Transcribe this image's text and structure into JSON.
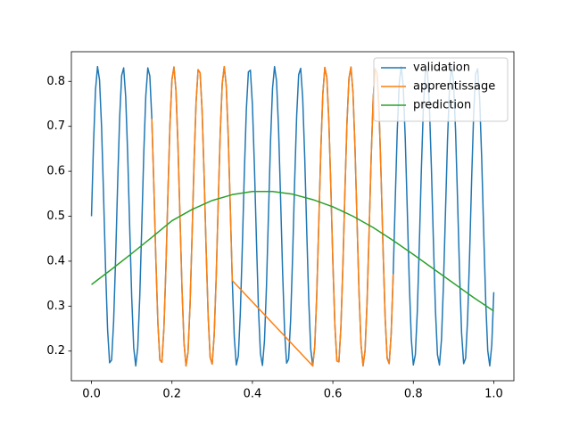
{
  "chart_data": {
    "type": "line",
    "xlim": [
      -0.05,
      1.05
    ],
    "ylim": [
      0.134,
      0.866
    ],
    "xticks": [
      {
        "value": 0,
        "label": "0.0"
      },
      0.2,
      0.4,
      0.6,
      0.8,
      {
        "value": 1,
        "label": "1.0"
      }
    ],
    "yticks": [
      0.2,
      0.3,
      0.4,
      0.5,
      0.6,
      0.7,
      0.8
    ],
    "grid": false,
    "legend": "upper right",
    "series": [
      {
        "name": "validation",
        "color": "#1f77b4",
        "x": [
          0,
          0.005,
          0.01,
          0.015,
          0.02,
          0.025,
          0.03,
          0.035,
          0.04,
          0.045,
          0.05,
          0.055,
          0.06,
          0.065,
          0.07,
          0.075,
          0.08,
          0.085,
          0.09,
          0.095,
          0.1,
          0.105,
          0.11,
          0.115,
          0.12,
          0.125,
          0.13,
          0.135,
          0.14,
          0.145,
          0.15,
          0.155,
          0.16,
          0.165,
          0.17,
          0.175,
          0.18,
          0.185,
          0.19,
          0.195,
          0.2,
          0.205,
          0.21,
          0.215,
          0.22,
          0.225,
          0.23,
          0.235,
          0.24,
          0.245,
          0.25,
          0.255,
          0.26,
          0.265,
          0.27,
          0.275,
          0.28,
          0.285,
          0.29,
          0.295,
          0.3,
          0.305,
          0.31,
          0.315,
          0.32,
          0.325,
          0.33,
          0.335,
          0.34,
          0.345,
          0.35,
          0.355,
          0.36,
          0.365,
          0.37,
          0.375,
          0.38,
          0.385,
          0.39,
          0.395,
          0.4,
          0.405,
          0.41,
          0.415,
          0.42,
          0.425,
          0.43,
          0.435,
          0.44,
          0.445,
          0.45,
          0.455,
          0.46,
          0.465,
          0.47,
          0.475,
          0.48,
          0.485,
          0.49,
          0.495,
          0.5,
          0.505,
          0.51,
          0.515,
          0.52,
          0.525,
          0.53,
          0.535,
          0.54,
          0.545,
          0.55,
          0.555,
          0.56,
          0.565,
          0.57,
          0.575,
          0.58,
          0.585,
          0.59,
          0.595,
          0.6,
          0.605,
          0.61,
          0.615,
          0.62,
          0.625,
          0.63,
          0.635,
          0.64,
          0.645,
          0.65,
          0.655,
          0.66,
          0.665,
          0.67,
          0.675,
          0.68,
          0.685,
          0.69,
          0.695,
          0.7,
          0.705,
          0.71,
          0.715,
          0.72,
          0.725,
          0.73,
          0.735,
          0.74,
          0.745,
          0.75,
          0.755,
          0.76,
          0.765,
          0.77,
          0.775,
          0.78,
          0.785,
          0.79,
          0.795,
          0.8,
          0.805,
          0.81,
          0.815,
          0.82,
          0.825,
          0.83,
          0.835,
          0.84,
          0.845,
          0.85,
          0.855,
          0.86,
          0.865,
          0.87,
          0.875,
          0.88,
          0.885,
          0.89,
          0.895,
          0.9,
          0.905,
          0.91,
          0.915,
          0.92,
          0.925,
          0.93,
          0.935,
          0.94,
          0.945,
          0.95,
          0.955,
          0.96,
          0.965,
          0.97,
          0.975,
          0.98,
          0.985,
          0.99,
          0.995,
          1
        ],
        "values": [
          0.5,
          0.66,
          0.781,
          0.833,
          0.803,
          0.7,
          0.547,
          0.383,
          0.248,
          0.174,
          0.18,
          0.265,
          0.407,
          0.572,
          0.719,
          0.813,
          0.83,
          0.766,
          0.637,
          0.475,
          0.319,
          0.207,
          0.167,
          0.208,
          0.321,
          0.478,
          0.64,
          0.768,
          0.83,
          0.812,
          0.717,
          0.569,
          0.404,
          0.263,
          0.18,
          0.175,
          0.25,
          0.386,
          0.55,
          0.702,
          0.804,
          0.832,
          0.779,
          0.657,
          0.497,
          0.338,
          0.218,
          0.167,
          0.198,
          0.303,
          0.456,
          0.62,
          0.754,
          0.826,
          0.819,
          0.734,
          0.59,
          0.425,
          0.279,
          0.186,
          0.171,
          0.236,
          0.365,
          0.528,
          0.684,
          0.795,
          0.833,
          0.79,
          0.676,
          0.519,
          0.357,
          0.23,
          0.169,
          0.189,
          0.285,
          0.434,
          0.599,
          0.739,
          0.821,
          0.825,
          0.748,
          0.611,
          0.447,
          0.295,
          0.194,
          0.168,
          0.223,
          0.345,
          0.506,
          0.665,
          0.784,
          0.833,
          0.801,
          0.695,
          0.541,
          0.378,
          0.244,
          0.173,
          0.182,
          0.269,
          0.413,
          0.577,
          0.723,
          0.815,
          0.829,
          0.763,
          0.632,
          0.469,
          0.314,
          0.204,
          0.167,
          0.211,
          0.326,
          0.484,
          0.645,
          0.772,
          0.831,
          0.809,
          0.712,
          0.563,
          0.398,
          0.258,
          0.178,
          0.176,
          0.254,
          0.391,
          0.556,
          0.707,
          0.807,
          0.832,
          0.776,
          0.652,
          0.491,
          0.332,
          0.215,
          0.167,
          0.201,
          0.308,
          0.462,
          0.625,
          0.758,
          0.828,
          0.817,
          0.73,
          0.585,
          0.42,
          0.274,
          0.184,
          0.172,
          0.239,
          0.371,
          0.534,
          0.689,
          0.797,
          0.833,
          0.788,
          0.671,
          0.513,
          0.352,
          0.227,
          0.169,
          0.192,
          0.29,
          0.44,
          0.604,
          0.743,
          0.823,
          0.823,
          0.744,
          0.606,
          0.441,
          0.291,
          0.192,
          0.169,
          0.226,
          0.351,
          0.512,
          0.67,
          0.787,
          0.833,
          0.798,
          0.69,
          0.535,
          0.372,
          0.24,
          0.172,
          0.184,
          0.273,
          0.418,
          0.583,
          0.728,
          0.817,
          0.828,
          0.759,
          0.627,
          0.463,
          0.309,
          0.201,
          0.167,
          0.214,
          0.331
        ]
      },
      {
        "name": "apprentissage",
        "color": "#ff7f0e",
        "x": [
          0.15,
          0.155,
          0.16,
          0.165,
          0.17,
          0.175,
          0.18,
          0.185,
          0.19,
          0.195,
          0.2,
          0.205,
          0.21,
          0.215,
          0.22,
          0.225,
          0.23,
          0.235,
          0.24,
          0.245,
          0.25,
          0.255,
          0.26,
          0.265,
          0.27,
          0.275,
          0.28,
          0.285,
          0.29,
          0.295,
          0.3,
          0.305,
          0.31,
          0.315,
          0.32,
          0.325,
          0.33,
          0.335,
          0.34,
          0.345,
          0.35,
          0.55,
          0.555,
          0.56,
          0.565,
          0.57,
          0.575,
          0.58,
          0.585,
          0.59,
          0.595,
          0.6,
          0.605,
          0.61,
          0.615,
          0.62,
          0.625,
          0.63,
          0.635,
          0.64,
          0.645,
          0.65,
          0.655,
          0.66,
          0.665,
          0.67,
          0.675,
          0.68,
          0.685,
          0.69,
          0.695,
          0.7,
          0.705,
          0.71,
          0.715,
          0.72,
          0.725,
          0.73,
          0.735,
          0.74,
          0.745,
          0.75
        ],
        "values": [
          0.717,
          0.569,
          0.404,
          0.263,
          0.18,
          0.175,
          0.25,
          0.386,
          0.55,
          0.702,
          0.804,
          0.832,
          0.779,
          0.657,
          0.497,
          0.338,
          0.218,
          0.167,
          0.198,
          0.303,
          0.456,
          0.62,
          0.754,
          0.826,
          0.819,
          0.734,
          0.59,
          0.425,
          0.279,
          0.186,
          0.171,
          0.236,
          0.365,
          0.528,
          0.684,
          0.795,
          0.833,
          0.79,
          0.676,
          0.519,
          0.357,
          0.167,
          0.211,
          0.326,
          0.484,
          0.645,
          0.772,
          0.831,
          0.809,
          0.712,
          0.563,
          0.398,
          0.258,
          0.178,
          0.176,
          0.254,
          0.391,
          0.556,
          0.707,
          0.807,
          0.832,
          0.776,
          0.652,
          0.491,
          0.332,
          0.215,
          0.167,
          0.201,
          0.308,
          0.462,
          0.625,
          0.758,
          0.828,
          0.817,
          0.73,
          0.585,
          0.42,
          0.274,
          0.184,
          0.172,
          0.239,
          0.371
        ]
      },
      {
        "name": "prediction",
        "color": "#2ca02c",
        "x": [
          0,
          0.05,
          0.1,
          0.15,
          0.2,
          0.25,
          0.3,
          0.35,
          0.4,
          0.45,
          0.5,
          0.55,
          0.6,
          0.65,
          0.7,
          0.75,
          0.8,
          0.85,
          0.9,
          0.95,
          1
        ],
        "values": [
          0.348,
          0.382,
          0.417,
          0.453,
          0.49,
          0.515,
          0.535,
          0.548,
          0.555,
          0.555,
          0.549,
          0.537,
          0.521,
          0.5,
          0.475,
          0.446,
          0.415,
          0.383,
          0.351,
          0.319,
          0.289
        ]
      }
    ]
  }
}
